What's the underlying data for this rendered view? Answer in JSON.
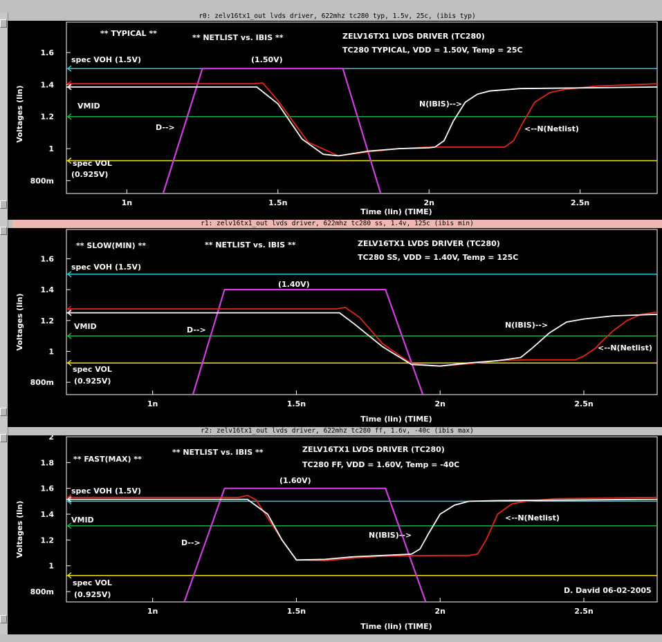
{
  "chart_data": [
    {
      "type": "line",
      "panel_title": "r0: zelv16tx1_out lvds driver, 622mhz tc280 typ, 1.5v, 25c, (ibis typ)",
      "xlabel": "Time (lin) (TIME)",
      "ylabel": "Voltages (lin)",
      "xlim": [
        0.8,
        2.755
      ],
      "ylim": [
        0.72,
        1.79
      ],
      "x_ticks": [
        1.0,
        1.5,
        2.0,
        2.5
      ],
      "x_tick_labels": [
        "1n",
        "1.5n",
        "2n",
        "2.5n"
      ],
      "y_ticks": [
        0.8,
        1.0,
        1.2,
        1.4,
        1.6
      ],
      "y_tick_labels": [
        "800m",
        "1",
        "1.2",
        "1.4",
        "1.6"
      ],
      "annotations": {
        "corner": "** TYPICAL **",
        "compare": "** NETLIST vs. IBIS **",
        "device": "ZELV16TX1  LVDS DRIVER (TC280)",
        "conditions": "TC280 TYPICAL, VDD = 1.50V, Temp = 25C",
        "voh_label": "spec VOH   (1.5V)",
        "vmid_label": "VMID",
        "vol_label": "spec VOL",
        "vol_value": "(0.925V)",
        "d_peak": "(1.50V)",
        "d_label": "D-->",
        "ibis_label": "N(IBIS)-->",
        "netlist_label": "<--N(Netlist)"
      },
      "ref_lines": {
        "voh": 1.5,
        "vmid": 1.2,
        "vol": 0.925
      },
      "series": [
        {
          "name": "D",
          "color": "#d040e0",
          "x": [
            1.12,
            1.25,
            1.715,
            1.84
          ],
          "y": [
            0.72,
            1.5,
            1.5,
            0.72
          ]
        },
        {
          "name": "N(Netlist)",
          "color": "#e02818",
          "x": [
            0.8,
            1.42,
            1.45,
            1.5,
            1.6,
            1.7,
            1.8,
            1.9,
            2.0,
            2.1,
            2.2,
            2.25,
            2.28,
            2.31,
            2.35,
            2.4,
            2.45,
            2.55,
            2.755
          ],
          "y": [
            1.405,
            1.405,
            1.41,
            1.3,
            1.04,
            0.955,
            0.98,
            1.0,
            1.01,
            1.01,
            1.01,
            1.01,
            1.05,
            1.16,
            1.29,
            1.35,
            1.37,
            1.39,
            1.405
          ]
        },
        {
          "name": "N(IBIS)",
          "color": "#ffffff",
          "x": [
            0.8,
            1.43,
            1.5,
            1.58,
            1.65,
            1.7,
            1.8,
            1.9,
            2.0,
            2.02,
            2.05,
            2.08,
            2.12,
            2.16,
            2.2,
            2.3,
            2.755
          ],
          "y": [
            1.385,
            1.385,
            1.28,
            1.06,
            0.965,
            0.955,
            0.985,
            1.0,
            1.005,
            1.01,
            1.05,
            1.17,
            1.29,
            1.34,
            1.36,
            1.375,
            1.385
          ]
        }
      ]
    },
    {
      "type": "line",
      "panel_title": "r1: zelv16tx1_out lvds driver, 622mhz tc280 ss, 1.4v, 125c (ibis min)",
      "xlabel": "Time (lin) (TIME)",
      "ylabel": "Voltages (lin)",
      "xlim": [
        0.7,
        2.755
      ],
      "ylim": [
        0.72,
        1.79
      ],
      "x_ticks": [
        1.0,
        1.5,
        2.0,
        2.5
      ],
      "x_tick_labels": [
        "1n",
        "1.5n",
        "2n",
        "2.5n"
      ],
      "y_ticks": [
        0.8,
        1.0,
        1.2,
        1.4,
        1.6
      ],
      "y_tick_labels": [
        "800m",
        "1",
        "1.2",
        "1.4",
        "1.6"
      ],
      "annotations": {
        "corner": "** SLOW(MIN) **",
        "compare": "** NETLIST vs. IBIS **",
        "device": "ZELV16TX1  LVDS DRIVER (TC280)",
        "conditions": "TC280 SS, VDD = 1.40V, Temp = 125C",
        "voh_label": "spec VOH   (1.5V)",
        "vmid_label": "VMID",
        "vol_label": "spec VOL",
        "vol_value": "(0.925V)",
        "d_peak": "(1.40V)",
        "d_label": "D-->",
        "ibis_label": "N(IBIS)-->",
        "netlist_label": "<--N(Netlist)"
      },
      "ref_lines": {
        "voh": 1.5,
        "vmid": 1.1,
        "vol": 0.925
      },
      "series": [
        {
          "name": "D",
          "color": "#d040e0",
          "x": [
            1.14,
            1.25,
            1.81,
            1.94
          ],
          "y": [
            0.72,
            1.4,
            1.4,
            0.72
          ]
        },
        {
          "name": "N(Netlist)",
          "color": "#e02818",
          "x": [
            0.7,
            1.64,
            1.67,
            1.72,
            1.8,
            1.9,
            2.0,
            2.1,
            2.2,
            2.3,
            2.4,
            2.47,
            2.5,
            2.54,
            2.56,
            2.6,
            2.65,
            2.7,
            2.755
          ],
          "y": [
            1.275,
            1.275,
            1.285,
            1.22,
            1.05,
            0.92,
            0.905,
            0.92,
            0.94,
            0.945,
            0.945,
            0.945,
            0.97,
            1.02,
            1.06,
            1.13,
            1.2,
            1.24,
            1.255
          ]
        },
        {
          "name": "N(IBIS)",
          "color": "#ffffff",
          "x": [
            0.7,
            1.65,
            1.7,
            1.8,
            1.9,
            2.0,
            2.1,
            2.2,
            2.28,
            2.32,
            2.38,
            2.44,
            2.5,
            2.6,
            2.755
          ],
          "y": [
            1.25,
            1.25,
            1.18,
            1.03,
            0.915,
            0.905,
            0.925,
            0.94,
            0.96,
            1.02,
            1.12,
            1.19,
            1.21,
            1.23,
            1.24
          ]
        }
      ]
    },
    {
      "type": "line",
      "panel_title": "r2: zelv16tx1_out lvds driver, 622mhz tc280 ff, 1.6v, -40c (ibis max)",
      "xlabel": "Time (lin) (TIME)",
      "ylabel": "Voltages (lin)",
      "xlim": [
        0.7,
        2.755
      ],
      "ylim": [
        0.72,
        2.0
      ],
      "x_ticks": [
        1.0,
        1.5,
        2.0,
        2.5
      ],
      "x_tick_labels": [
        "1n",
        "1.5n",
        "2n",
        "2.5n"
      ],
      "y_ticks": [
        0.8,
        1.0,
        1.2,
        1.4,
        1.6,
        1.8,
        2.0
      ],
      "y_tick_labels": [
        "800m",
        "1",
        "1.2",
        "1.4",
        "1.6",
        "1.8",
        "2"
      ],
      "annotations": {
        "corner": "** FAST(MAX) **",
        "compare": "** NETLIST vs. IBIS **",
        "device": "ZELV16TX1  LVDS DRIVER (TC280)",
        "conditions": "TC280 FF, VDD = 1.60V, Temp = -40C",
        "voh_label": "spec VOH   (1.5V)",
        "vmid_label": "VMID",
        "vol_label": "spec VOL",
        "vol_value": "(0.925V)",
        "d_peak": "(1.60V)",
        "d_label": "D-->",
        "ibis_label": "N(IBIS)-->",
        "netlist_label": "<--N(Netlist)",
        "author": "D. David 06-02-2005"
      },
      "ref_lines": {
        "voh": 1.5,
        "vmid": 1.31,
        "vol": 0.925
      },
      "series": [
        {
          "name": "D",
          "color": "#d040e0",
          "x": [
            1.11,
            1.25,
            1.81,
            1.95
          ],
          "y": [
            0.72,
            1.6,
            1.6,
            0.72
          ]
        },
        {
          "name": "N(Netlist)",
          "color": "#e02818",
          "x": [
            0.7,
            1.3,
            1.33,
            1.36,
            1.45,
            1.5,
            1.6,
            1.7,
            1.8,
            2.0,
            2.1,
            2.13,
            2.16,
            2.2,
            2.25,
            2.3,
            2.4,
            2.755
          ],
          "y": [
            1.53,
            1.53,
            1.545,
            1.51,
            1.2,
            1.045,
            1.04,
            1.06,
            1.075,
            1.08,
            1.08,
            1.09,
            1.2,
            1.4,
            1.48,
            1.5,
            1.52,
            1.53
          ]
        },
        {
          "name": "N(IBIS)",
          "color": "#ffffff",
          "x": [
            0.7,
            1.33,
            1.4,
            1.45,
            1.5,
            1.6,
            1.7,
            1.8,
            1.9,
            1.93,
            1.96,
            2.0,
            2.05,
            2.1,
            2.2,
            2.755
          ],
          "y": [
            1.515,
            1.515,
            1.4,
            1.2,
            1.045,
            1.05,
            1.07,
            1.08,
            1.09,
            1.13,
            1.25,
            1.4,
            1.47,
            1.5,
            1.505,
            1.515
          ]
        }
      ]
    }
  ]
}
